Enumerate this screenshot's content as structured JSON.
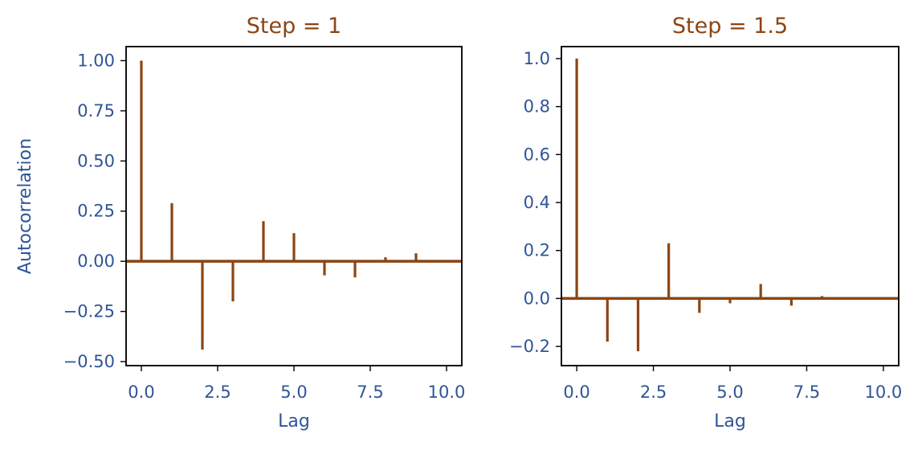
{
  "colors": {
    "stem": "#8B4513",
    "title": "#8B4513",
    "axis_text": "#2F5597",
    "frame": "#000000",
    "background": "#ffffff"
  },
  "chart_data": [
    {
      "type": "bar",
      "chart_style": "stem",
      "title": "Step = 1",
      "xlabel": "Lag",
      "ylabel": "Autocorrelation",
      "xlim": [
        -0.5,
        10.5
      ],
      "ylim": [
        -0.52,
        1.07
      ],
      "xticks": [
        0.0,
        2.5,
        5.0,
        7.5,
        10.0
      ],
      "xtick_labels": [
        "0.0",
        "2.5",
        "5.0",
        "7.5",
        "10.0"
      ],
      "yticks": [
        -0.5,
        -0.25,
        0.0,
        0.25,
        0.5,
        0.75,
        1.0
      ],
      "ytick_labels": [
        "−0.50",
        "−0.25",
        "0.00",
        "0.25",
        "0.50",
        "0.75",
        "1.00"
      ],
      "grid": false,
      "baseline": 0,
      "x": [
        0,
        1,
        2,
        3,
        4,
        5,
        6,
        7,
        8,
        9
      ],
      "values": [
        1.0,
        0.29,
        -0.44,
        -0.2,
        0.2,
        0.14,
        -0.07,
        -0.08,
        0.02,
        0.04
      ]
    },
    {
      "type": "bar",
      "chart_style": "stem",
      "title": "Step = 1.5",
      "xlabel": "Lag",
      "ylabel": "",
      "xlim": [
        -0.5,
        10.5
      ],
      "ylim": [
        -0.28,
        1.05
      ],
      "xticks": [
        0.0,
        2.5,
        5.0,
        7.5,
        10.0
      ],
      "xtick_labels": [
        "0.0",
        "2.5",
        "5.0",
        "7.5",
        "10.0"
      ],
      "yticks": [
        -0.2,
        0.0,
        0.2,
        0.4,
        0.6,
        0.8,
        1.0
      ],
      "ytick_labels": [
        "−0.2",
        "0.0",
        "0.2",
        "0.4",
        "0.6",
        "0.8",
        "1.0"
      ],
      "grid": false,
      "baseline": 0,
      "x": [
        0,
        1,
        2,
        3,
        4,
        5,
        6,
        7,
        8
      ],
      "values": [
        1.0,
        -0.18,
        -0.22,
        0.23,
        -0.06,
        -0.02,
        0.06,
        -0.03,
        0.01
      ]
    }
  ]
}
